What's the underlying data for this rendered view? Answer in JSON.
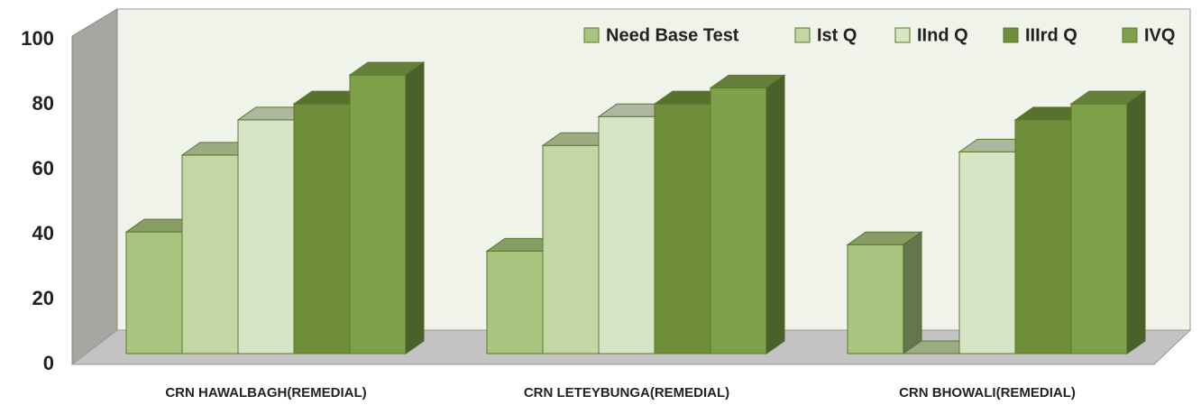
{
  "chart_data": {
    "type": "bar3d",
    "categories": [
      "CRN HAWALBAGH(REMEDIAL)",
      "CRN LETEYBUNGA(REMEDIAL)",
      "CRN BHOWALI(REMEDIAL)"
    ],
    "series": [
      {
        "name": "Need Base Test",
        "color": "#a9c47f",
        "values": [
          38,
          32,
          34
        ]
      },
      {
        "name": "Ist Q",
        "color": "#c4d6a4",
        "values": [
          62,
          65,
          0
        ]
      },
      {
        "name": "IInd Q",
        "color": "#d8e4c6",
        "values": [
          73,
          74,
          63
        ]
      },
      {
        "name": "IIIrd Q",
        "color": "#6e8e3a",
        "values": [
          78,
          78,
          73
        ]
      },
      {
        "name": "IVQ",
        "color": "#7fa04a",
        "values": [
          87,
          83,
          78
        ]
      }
    ],
    "ylim": [
      0,
      100
    ],
    "yticks": [
      0,
      20,
      40,
      60,
      80,
      100
    ],
    "legend": "top-right"
  }
}
